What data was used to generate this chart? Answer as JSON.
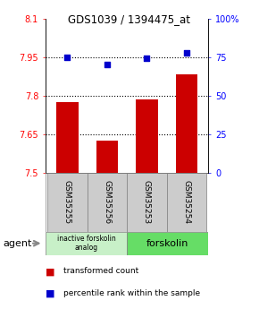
{
  "title": "GDS1039 / 1394475_at",
  "samples": [
    "GSM35255",
    "GSM35256",
    "GSM35253",
    "GSM35254"
  ],
  "bar_values": [
    7.775,
    7.625,
    7.787,
    7.885
  ],
  "dot_values": [
    75,
    70.5,
    74.5,
    78
  ],
  "ylim_left": [
    7.5,
    8.1
  ],
  "ylim_right": [
    0,
    100
  ],
  "yticks_left": [
    7.5,
    7.65,
    7.8,
    7.95,
    8.1
  ],
  "ytick_labels_left": [
    "7.5",
    "7.65",
    "7.8",
    "7.95",
    "8.1"
  ],
  "yticks_right": [
    0,
    25,
    50,
    75,
    100
  ],
  "ytick_labels_right": [
    "0",
    "25",
    "50",
    "75",
    "100%"
  ],
  "hlines": [
    7.65,
    7.8,
    7.95
  ],
  "bar_color": "#cc0000",
  "dot_color": "#0000cc",
  "group1_label": "inactive forskolin\nanalog",
  "group2_label": "forskolin",
  "group1_color": "#c8f0c8",
  "group2_color": "#66dd66",
  "agent_label": "agent",
  "legend_bar": "transformed count",
  "legend_dot": "percentile rank within the sample",
  "bar_width": 0.55,
  "x_positions": [
    0,
    1,
    2,
    3
  ]
}
